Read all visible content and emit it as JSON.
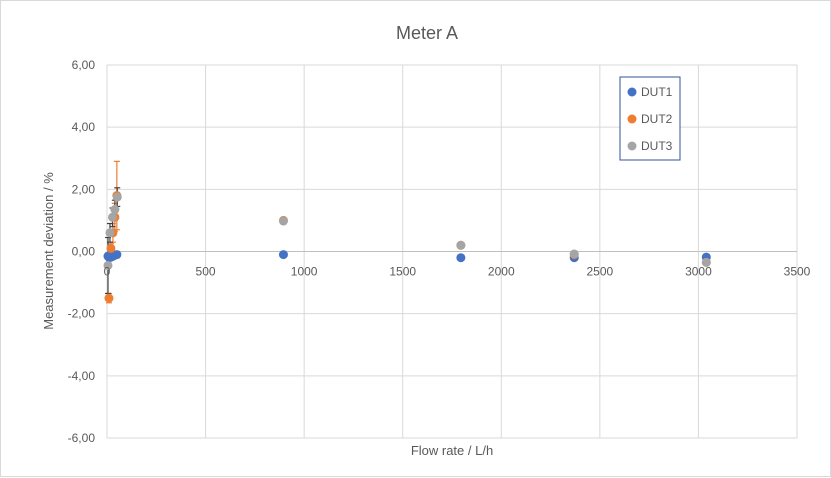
{
  "chart_data": {
    "type": "scatter",
    "title": "Meter A",
    "xlabel": "Flow rate / L/h",
    "ylabel": "Measurement deviation / %",
    "xlim": [
      0,
      3500
    ],
    "ylim": [
      -6,
      6
    ],
    "x_ticks": [
      0,
      500,
      1000,
      1500,
      2000,
      2500,
      3000,
      3500
    ],
    "x_tick_labels": [
      "0",
      "500",
      "1000",
      "1500",
      "2000",
      "2500",
      "3000",
      "3500"
    ],
    "y_ticks": [
      -6,
      -4,
      -2,
      0,
      2,
      4,
      6
    ],
    "y_tick_labels": [
      "-6,00",
      "-4,00",
      "-2,00",
      "0,00",
      "2,00",
      "4,00",
      "6,00"
    ],
    "grid": true,
    "legend_position": "top-right",
    "series": [
      {
        "name": "DUT1",
        "color": "#4472c4",
        "points": [
          {
            "x": 5,
            "y": -0.15
          },
          {
            "x": 12,
            "y": -0.2
          },
          {
            "x": 20,
            "y": -0.18
          },
          {
            "x": 30,
            "y": -0.15
          },
          {
            "x": 40,
            "y": -0.12
          },
          {
            "x": 50,
            "y": -0.1
          },
          {
            "x": 895,
            "y": -0.1
          },
          {
            "x": 1795,
            "y": -0.2
          },
          {
            "x": 2370,
            "y": -0.2
          },
          {
            "x": 3040,
            "y": -0.18
          }
        ],
        "error": [
          0.1,
          0.1,
          0.1,
          0.1,
          0.1,
          0.1,
          0,
          0,
          0,
          0
        ]
      },
      {
        "name": "DUT2",
        "color": "#ed7d31",
        "points": [
          {
            "x": 10,
            "y": -1.5
          },
          {
            "x": 20,
            "y": 0.1
          },
          {
            "x": 30,
            "y": 0.6
          },
          {
            "x": 40,
            "y": 1.1
          },
          {
            "x": 50,
            "y": 1.8
          },
          {
            "x": 895,
            "y": 1.0
          },
          {
            "x": 1795,
            "y": 0.2
          },
          {
            "x": 2370,
            "y": -0.1
          },
          {
            "x": 3040,
            "y": -0.35
          }
        ],
        "error": [
          0.15,
          0.15,
          0.3,
          0.45,
          1.1,
          0,
          0,
          0,
          0
        ]
      },
      {
        "name": "DUT3",
        "color": "#a5a5a5",
        "points": [
          {
            "x": 5,
            "y": -0.45
          },
          {
            "x": 15,
            "y": 0.6
          },
          {
            "x": 28,
            "y": 1.1
          },
          {
            "x": 40,
            "y": 1.35
          },
          {
            "x": 52,
            "y": 1.75
          },
          {
            "x": 895,
            "y": 0.98
          },
          {
            "x": 1795,
            "y": 0.2
          },
          {
            "x": 2370,
            "y": -0.08
          },
          {
            "x": 3040,
            "y": -0.35
          }
        ],
        "error": [
          0.9,
          0.3,
          0.3,
          0.3,
          0.3,
          0,
          0,
          0,
          0
        ]
      }
    ]
  }
}
